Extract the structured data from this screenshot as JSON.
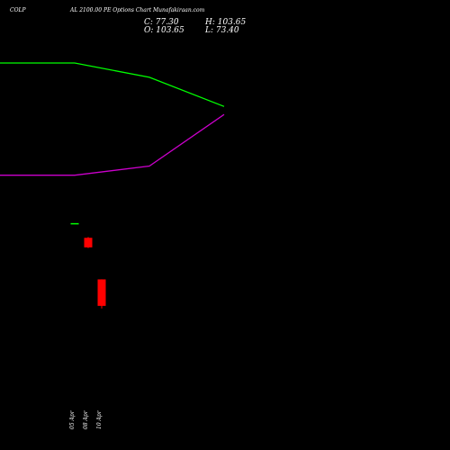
{
  "header": {
    "symbol": "COLP",
    "subtitle": "AL 2100.00 PE Options Chart Munafakiraan.com"
  },
  "ohlc": {
    "close_label": "C: 77.30",
    "high_label": "H: 103.65",
    "open_label": "O: 103.65",
    "low_label": "L: 73.40"
  },
  "colors": {
    "background": "#000000",
    "upper_band": "#00ff00",
    "lower_band": "#cc00cc",
    "down_candle": "#ff0000",
    "flat_candle": "#00ff00"
  },
  "chart_data": {
    "type": "candlestick",
    "x_labels": [
      "05 Apr",
      "08 Apr",
      "10 Apr"
    ],
    "candles": [
      {
        "open": 104.0,
        "high": 104.0,
        "low": 104.0,
        "close": 104.0
      },
      {
        "open": 100.0,
        "high": 100.2,
        "low": 97.2,
        "close": 97.4
      },
      {
        "open": 88.7,
        "high": 88.7,
        "low": 80.8,
        "close": 81.5
      }
    ],
    "upper_band": [
      {
        "x": -1.2,
        "y": 147.5
      },
      {
        "x": 0,
        "y": 147.5
      },
      {
        "x": 1,
        "y": 143.6
      },
      {
        "x": 2,
        "y": 135.7
      }
    ],
    "lower_band": [
      {
        "x": -1.2,
        "y": 117.0
      },
      {
        "x": 0,
        "y": 117.0
      },
      {
        "x": 1,
        "y": 119.5
      },
      {
        "x": 2,
        "y": 133.5
      }
    ],
    "ylim": [
      73.4,
      147.5
    ]
  }
}
